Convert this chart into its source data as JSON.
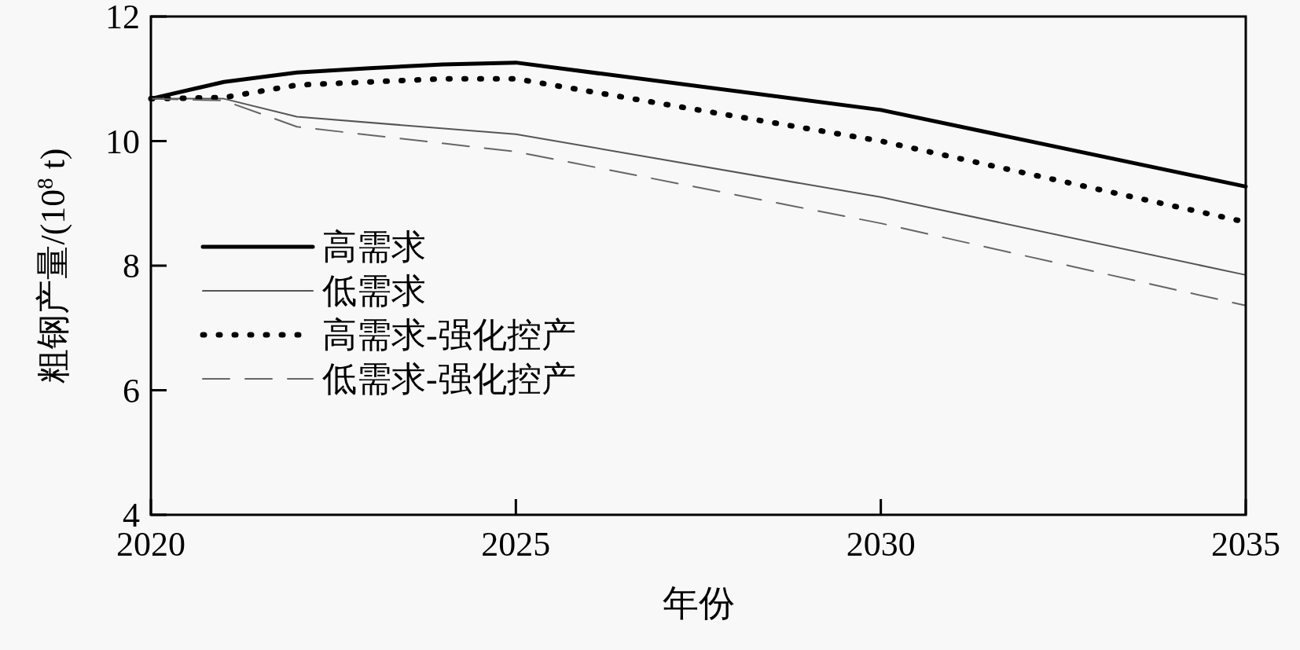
{
  "chart_data": {
    "type": "line",
    "xlabel": "年份",
    "ylabel": "粗钢产量/(10$^{8}$ t)",
    "xlim": [
      2020,
      2035
    ],
    "xticks": [
      2020,
      2025,
      2030,
      2035
    ],
    "ylim": [
      4,
      12
    ],
    "yticks": [
      4,
      6,
      8,
      10,
      12
    ],
    "grid": false,
    "legend": "left",
    "marker": "none",
    "series": [
      {
        "name": "高需求",
        "color": "#000000",
        "line_style": "solid",
        "x": [
          2020,
          2021,
          2022,
          2023,
          2024,
          2025,
          2030,
          2035
        ],
        "values": [
          10.68,
          10.95,
          11.1,
          11.17,
          11.23,
          11.26,
          10.5,
          9.27
        ]
      },
      {
        "name": "低需求",
        "color": "#555555",
        "line_style": "solid",
        "x": [
          2020,
          2021,
          2022,
          2025,
          2030,
          2035
        ],
        "values": [
          10.68,
          10.68,
          10.39,
          10.11,
          9.1,
          7.85
        ]
      },
      {
        "name": "高需求-强化控产",
        "color": "#000000",
        "line_style": "dotted",
        "x": [
          2020,
          2021,
          2022,
          2023,
          2024,
          2025,
          2030,
          2035
        ],
        "values": [
          10.68,
          10.7,
          10.9,
          10.95,
          11.0,
          11.0,
          10.0,
          8.7
        ]
      },
      {
        "name": "低需求-强化控产",
        "color": "#666666",
        "line_style": "dashed",
        "x": [
          2020,
          2021,
          2022,
          2025,
          2030,
          2035
        ],
        "values": [
          10.68,
          10.65,
          10.23,
          9.83,
          8.68,
          7.36
        ]
      }
    ]
  }
}
